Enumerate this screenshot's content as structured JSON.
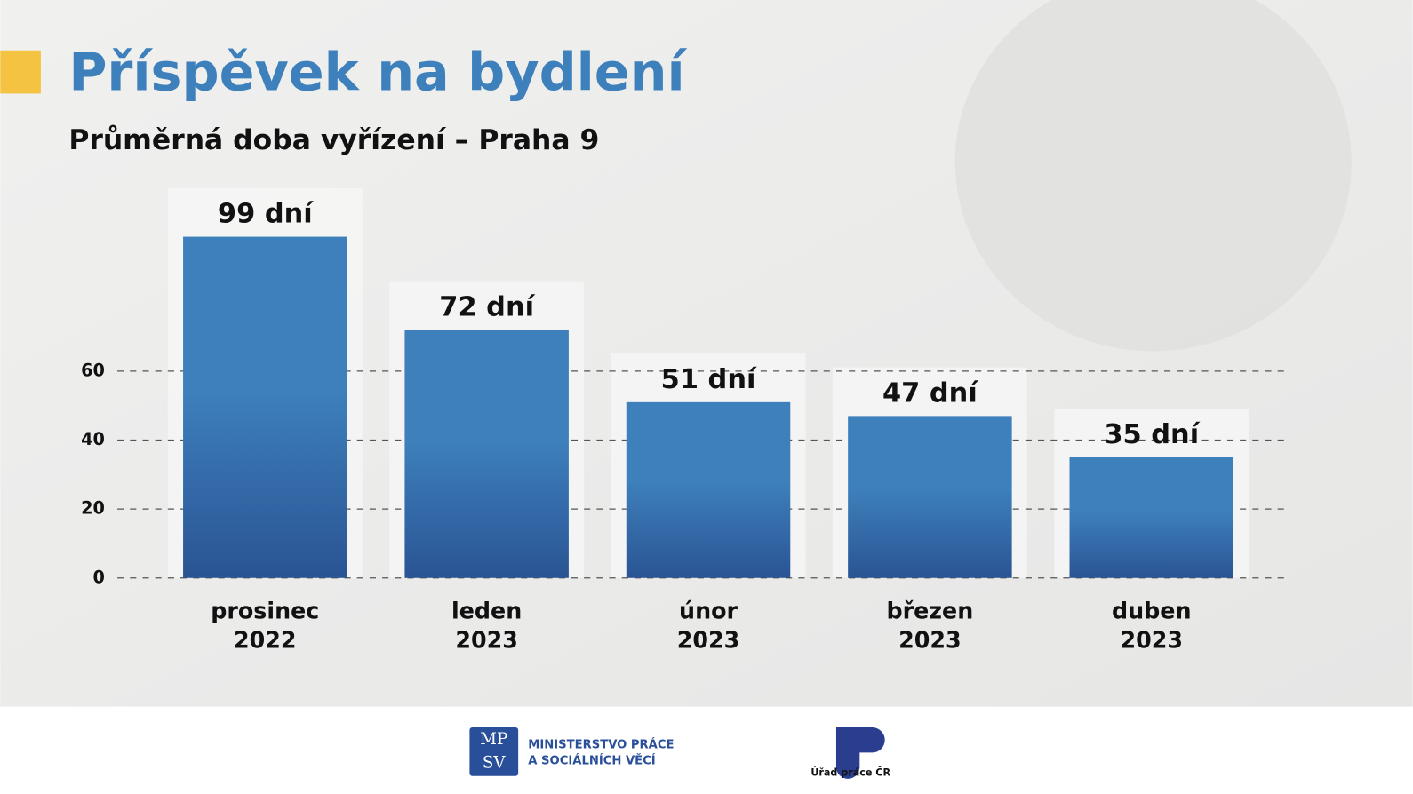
{
  "chart_data": {
    "type": "bar",
    "title": "Příspěvek na bydlení",
    "subtitle": "Průměrná doba vyřízení – Praha 9",
    "categories": [
      "prosinec 2022",
      "leden 2023",
      "únor 2023",
      "březen 2023",
      "duben 2023"
    ],
    "values": [
      99,
      72,
      51,
      47,
      35
    ],
    "value_labels": [
      "99 dní",
      "72 dní",
      "51 dní",
      "47 dní",
      "35 dní"
    ],
    "color": "#3d80bb",
    "ylim": [
      0,
      105
    ],
    "yticks": [
      0,
      20,
      40,
      60
    ],
    "grid": true
  },
  "footer": {
    "logo_top": "MP",
    "logo_bottom": "SV",
    "ministry_line1": "MINISTERSTVO PRÁCE",
    "ministry_line2": "A SOCIÁLNÍCH VĚCÍ",
    "office": "Úřad práce ČR"
  }
}
